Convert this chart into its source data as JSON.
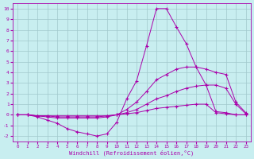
{
  "xlabel": "Windchill (Refroidissement éolien,°C)",
  "background_color": "#c8eef0",
  "grid_color": "#a0c8cc",
  "line_color": "#aa00aa",
  "xlim": [
    -0.5,
    23.5
  ],
  "ylim": [
    -2.5,
    10.5
  ],
  "xticks": [
    0,
    1,
    2,
    3,
    4,
    5,
    6,
    7,
    8,
    9,
    10,
    11,
    12,
    13,
    14,
    15,
    16,
    17,
    18,
    19,
    20,
    21,
    22,
    23
  ],
  "yticks": [
    -2,
    -1,
    0,
    1,
    2,
    3,
    4,
    5,
    6,
    7,
    8,
    9,
    10
  ],
  "series": [
    {
      "x": [
        0,
        1,
        2,
        3,
        4,
        5,
        6,
        7,
        8,
        9,
        10,
        11,
        12,
        13,
        14,
        15,
        16,
        17,
        18,
        19,
        20,
        21,
        22,
        23
      ],
      "y": [
        0.0,
        0.0,
        -0.2,
        -0.5,
        -0.8,
        -1.3,
        -1.6,
        -1.8,
        -2.0,
        -1.8,
        -0.7,
        1.5,
        3.2,
        6.5,
        10.0,
        10.0,
        8.3,
        6.7,
        4.5,
        2.8,
        0.3,
        0.2,
        0.0,
        0.0
      ]
    },
    {
      "x": [
        0,
        1,
        2,
        3,
        4,
        5,
        6,
        7,
        8,
        9,
        10,
        11,
        12,
        13,
        14,
        15,
        16,
        17,
        18,
        19,
        20,
        21,
        22,
        23
      ],
      "y": [
        0.0,
        0.0,
        -0.1,
        -0.2,
        -0.3,
        -0.3,
        -0.3,
        -0.3,
        -0.3,
        -0.2,
        0.0,
        0.5,
        1.2,
        2.2,
        3.3,
        3.8,
        4.3,
        4.5,
        4.5,
        4.3,
        4.0,
        3.8,
        1.2,
        0.2
      ]
    },
    {
      "x": [
        0,
        1,
        2,
        3,
        4,
        5,
        6,
        7,
        8,
        9,
        10,
        11,
        12,
        13,
        14,
        15,
        16,
        17,
        18,
        19,
        20,
        21,
        22,
        23
      ],
      "y": [
        0.0,
        0.0,
        -0.1,
        -0.1,
        -0.2,
        -0.2,
        -0.2,
        -0.2,
        -0.2,
        -0.1,
        0.0,
        0.2,
        0.5,
        1.0,
        1.5,
        1.8,
        2.2,
        2.5,
        2.7,
        2.8,
        2.8,
        2.5,
        1.0,
        0.1
      ]
    },
    {
      "x": [
        0,
        1,
        2,
        3,
        4,
        5,
        6,
        7,
        8,
        9,
        10,
        11,
        12,
        13,
        14,
        15,
        16,
        17,
        18,
        19,
        20,
        21,
        22,
        23
      ],
      "y": [
        0.0,
        0.0,
        -0.1,
        -0.1,
        -0.1,
        -0.1,
        -0.1,
        -0.1,
        -0.1,
        -0.1,
        0.0,
        0.1,
        0.2,
        0.4,
        0.6,
        0.7,
        0.8,
        0.9,
        1.0,
        1.0,
        0.2,
        0.1,
        0.0,
        0.0
      ]
    }
  ]
}
